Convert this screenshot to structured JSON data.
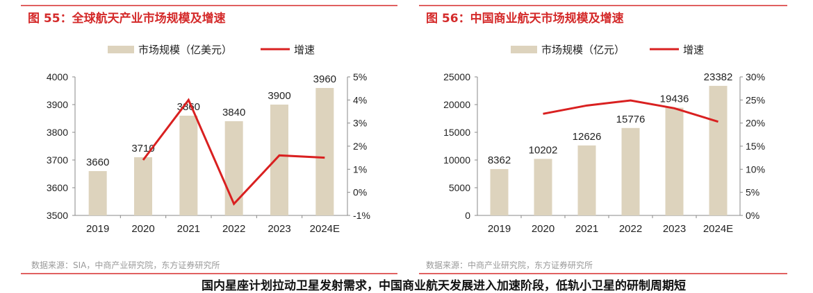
{
  "chart_data": [
    {
      "type": "bar+line",
      "title": "图 55：全球航天产业市场规模及增速",
      "categories": [
        "2019",
        "2020",
        "2021",
        "2022",
        "2023",
        "2024E"
      ],
      "series": [
        {
          "name": "市场规模（亿美元）",
          "type": "bar",
          "values": [
            3660,
            3710,
            3860,
            3840,
            3900,
            3960
          ]
        },
        {
          "name": "增速",
          "type": "line",
          "axis": "right",
          "values": [
            null,
            1.4,
            4.0,
            -0.5,
            1.6,
            1.5
          ]
        }
      ],
      "bar_labels": [
        "3660",
        "3710",
        "3860",
        "3840",
        "3900",
        "3960"
      ],
      "ylim": [
        3500,
        4000
      ],
      "yticks": [
        "3500",
        "3600",
        "3700",
        "3800",
        "3900",
        "4000"
      ],
      "y2lim": [
        -1,
        5
      ],
      "y2ticks": [
        "-1%",
        "0%",
        "1%",
        "2%",
        "3%",
        "4%",
        "5%"
      ],
      "legend": "top-center",
      "source": "数据来源：SIA，中商产业研究院，东方证券研究所"
    },
    {
      "type": "bar+line",
      "title": "图 56：中国商业航天市场规模及增速",
      "categories": [
        "2019",
        "2020",
        "2021",
        "2022",
        "2023",
        "2024E"
      ],
      "series": [
        {
          "name": "市场规模（亿元）",
          "type": "bar",
          "values": [
            8362,
            10202,
            12626,
            15776,
            19436,
            23382
          ]
        },
        {
          "name": "增速",
          "type": "line",
          "axis": "right",
          "values": [
            null,
            22.0,
            23.8,
            24.9,
            23.2,
            20.3
          ]
        }
      ],
      "bar_labels": [
        "8362",
        "10202",
        "12626",
        "15776",
        "19436",
        "23382"
      ],
      "ylim": [
        0,
        25000
      ],
      "yticks": [
        "0",
        "5000",
        "10000",
        "15000",
        "20000",
        "25000"
      ],
      "y2lim": [
        0,
        30
      ],
      "y2ticks": [
        "0%",
        "5%",
        "10%",
        "15%",
        "20%",
        "25%",
        "30%"
      ],
      "legend": "top-center",
      "source": "数据来源：中商产业研究院，东方证券研究所"
    }
  ],
  "bottom_text": "国内星座计划拉动卫星发射需求，中国商业航天发展进入加速阶段，低轨小卫星的研制周期短",
  "colors": {
    "bar": "#ddd3bd",
    "line": "#d92020",
    "title": "#d42a2a"
  }
}
